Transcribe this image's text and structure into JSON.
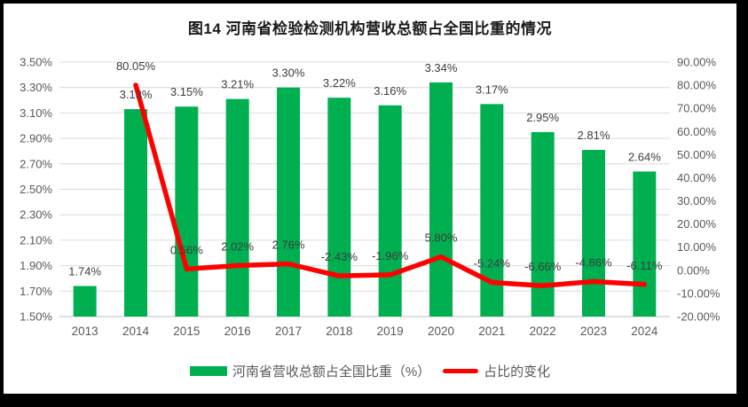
{
  "chart_data": {
    "type": "bar+line",
    "title": "图14 河南省检验检测机构营收总额占全国比重的情况",
    "categories": [
      "2013",
      "2014",
      "2015",
      "2016",
      "2017",
      "2018",
      "2019",
      "2020",
      "2021",
      "2022",
      "2023",
      "2024"
    ],
    "series": [
      {
        "name": "河南省营收总额占全国比重（%）",
        "type": "bar",
        "axis": "left",
        "color": "#00B050",
        "values": [
          1.74,
          3.13,
          3.15,
          3.21,
          3.3,
          3.22,
          3.16,
          3.34,
          3.17,
          2.95,
          2.81,
          2.64
        ],
        "labels": [
          "1.74%",
          "3.13%",
          "3.15%",
          "3.21%",
          "3.30%",
          "3.22%",
          "3.16%",
          "3.34%",
          "3.17%",
          "2.95%",
          "2.81%",
          "2.64%"
        ]
      },
      {
        "name": "占比的变化",
        "type": "line",
        "axis": "right",
        "color": "#FF0000",
        "values": [
          null,
          80.05,
          0.56,
          2.02,
          2.76,
          -2.43,
          -1.96,
          5.8,
          -5.24,
          -6.66,
          -4.86,
          -6.11
        ],
        "labels": [
          null,
          "80.05%",
          "0.56%",
          "2.02%",
          "2.76%",
          "-2.43%",
          "-1.96%",
          "5.80%",
          "-5.24%",
          "-6.66%",
          "-4.86%",
          "-6.11%"
        ]
      }
    ],
    "left_axis": {
      "min": 1.5,
      "max": 3.5,
      "step": 0.2,
      "tick_labels": [
        "1.50%",
        "1.70%",
        "1.90%",
        "2.10%",
        "2.30%",
        "2.50%",
        "2.70%",
        "2.90%",
        "3.10%",
        "3.30%",
        "3.50%"
      ]
    },
    "right_axis": {
      "min": -20,
      "max": 90,
      "step": 10,
      "tick_labels": [
        "-20.00%",
        "-10.00%",
        "0.00%",
        "10.00%",
        "20.00%",
        "30.00%",
        "40.00%",
        "50.00%",
        "60.00%",
        "70.00%",
        "80.00%",
        "90.00%"
      ]
    },
    "grid": true,
    "legend_position": "bottom"
  },
  "colors": {
    "bar": "#00B050",
    "line": "#FF0000",
    "gridline": "#DCDCDC",
    "axis_line": "#BFBFBF",
    "axis_text": "#595959",
    "data_label_text": "#3d3d3d",
    "title_text": "#1a1a1a",
    "legend_text": "#595959",
    "frame": "#000000",
    "background": "#FFFFFF"
  }
}
